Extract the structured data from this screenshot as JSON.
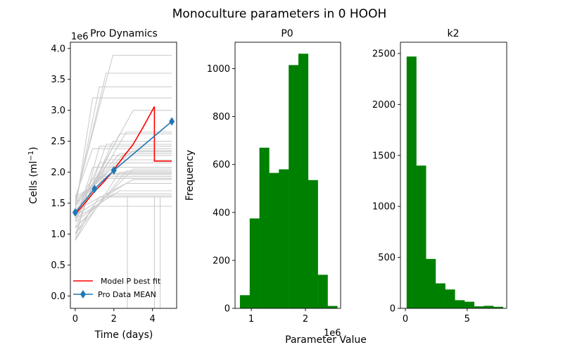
{
  "figure": {
    "suptitle": "Monoculture parameters in 0 HOOH",
    "shared_xlabel": "Parameter Value",
    "colors": {
      "sims": "#cccccc",
      "best_fit": "#ff0000",
      "data": "#1f77b4",
      "hist": "#008000"
    }
  },
  "chart_data": [
    {
      "type": "line",
      "title": "Pro Dynamics",
      "xlabel": "Time (days)",
      "ylabel": "Cells (ml",
      "ylabel_sup": "−1",
      "ylabel_end": ")",
      "y_offset_label": "1e6",
      "xlim": [
        -0.25,
        5.25
      ],
      "ylim": [
        -0.2,
        4.1
      ],
      "x_ticks": [
        0,
        2,
        4
      ],
      "x_tick_labels": [
        "0",
        "2",
        "4"
      ],
      "y_ticks": [
        0,
        0.5,
        1.0,
        1.5,
        2.0,
        2.5,
        3.0,
        3.5,
        4.0
      ],
      "y_tick_labels": [
        "0.0",
        "0.5",
        "1.0",
        "1.5",
        "2.0",
        "2.5",
        "3.0",
        "3.5",
        "4.0"
      ],
      "y_units": "cells/ml ×1e6",
      "legend_position": "lower-left",
      "series": [
        {
          "name": "Model P best fit",
          "kind": "line",
          "color": "#ff0000",
          "x": [
            0,
            0.5,
            1,
            1.5,
            2,
            2.5,
            3,
            3.5,
            4.1,
            4.1,
            5.0
          ],
          "y": [
            1.32,
            1.5,
            1.69,
            1.85,
            2.04,
            2.25,
            2.45,
            2.72,
            3.06,
            2.18,
            2.18
          ]
        },
        {
          "name": "Pro Data MEAN",
          "kind": "line-marker",
          "color": "#1f77b4",
          "x": [
            0,
            1,
            2,
            5
          ],
          "y": [
            1.35,
            1.73,
            2.03,
            2.82
          ]
        }
      ],
      "simulations": {
        "color": "#cccccc",
        "plateaus": [
          1.45,
          1.6,
          1.62,
          1.65,
          1.7,
          1.82,
          1.88,
          1.9,
          1.93,
          1.96,
          1.98,
          2.0,
          2.02,
          2.05,
          2.08,
          2.15,
          2.2,
          2.27,
          2.3,
          2.33,
          2.35,
          2.38,
          2.42,
          2.45,
          2.5,
          2.62,
          2.65,
          3.0,
          3.2,
          3.38,
          3.6,
          3.89
        ],
        "starts": [
          0.9,
          1.0,
          1.1,
          1.2,
          1.25,
          1.3,
          1.38,
          1.45,
          1.5,
          1.55,
          1.6
        ]
      }
    },
    {
      "type": "bar",
      "title": "P0",
      "ylabel": "Frequency",
      "x_offset_label": "1e6",
      "xlim": [
        0.7,
        2.65
      ],
      "ylim": [
        0,
        1110
      ],
      "x_ticks": [
        1,
        2
      ],
      "x_tick_labels": [
        "1",
        "2"
      ],
      "y_ticks": [
        0,
        200,
        400,
        600,
        800,
        1000
      ],
      "y_tick_labels": [
        "0",
        "200",
        "400",
        "600",
        "800",
        "1000"
      ],
      "color": "#008000",
      "bin_edges": [
        0.79,
        0.97,
        1.15,
        1.33,
        1.51,
        1.69,
        1.87,
        2.05,
        2.23,
        2.41,
        2.59
      ],
      "values": [
        55,
        375,
        670,
        565,
        580,
        1015,
        1062,
        535,
        140,
        10
      ]
    },
    {
      "type": "bar",
      "title": "k2",
      "xlim": [
        -0.4,
        8.2
      ],
      "ylim": [
        0,
        2610
      ],
      "x_ticks": [
        0,
        5
      ],
      "x_tick_labels": [
        "0",
        "5"
      ],
      "y_ticks": [
        0,
        500,
        1000,
        1500,
        2000,
        2500
      ],
      "y_tick_labels": [
        "0",
        "500",
        "1000",
        "1500",
        "2000",
        "2500"
      ],
      "color": "#008000",
      "bin_edges": [
        0.1,
        0.88,
        1.66,
        2.44,
        3.22,
        4.0,
        4.78,
        5.56,
        6.34,
        7.12,
        7.9
      ],
      "values": [
        2470,
        1400,
        485,
        245,
        185,
        80,
        65,
        20,
        25,
        15
      ]
    }
  ]
}
